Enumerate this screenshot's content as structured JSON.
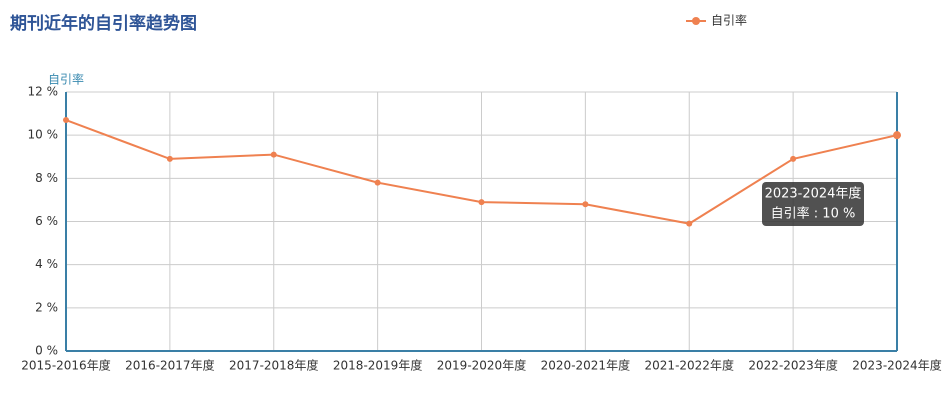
{
  "chart_data": {
    "type": "line",
    "title": "期刊近年的自引率趋势图",
    "y_label": "自引率",
    "categories": [
      "2015-2016年度",
      "2016-2017年度",
      "2017-2018年度",
      "2018-2019年度",
      "2019-2020年度",
      "2020-2021年度",
      "2021-2022年度",
      "2022-2023年度",
      "2023-2024年度"
    ],
    "series": [
      {
        "name": "自引率",
        "color": "#ef8150",
        "values": [
          10.7,
          8.9,
          9.1,
          7.8,
          6.9,
          6.8,
          5.9,
          8.9,
          10
        ]
      }
    ],
    "ylim": [
      0,
      12
    ],
    "yticks": [
      {
        "value": 0,
        "label": "0 %"
      },
      {
        "value": 2,
        "label": "2 %"
      },
      {
        "value": 4,
        "label": "4 %"
      },
      {
        "value": 6,
        "label": "6 %"
      },
      {
        "value": 8,
        "label": "8 %"
      },
      {
        "value": 10,
        "label": "10 %"
      },
      {
        "value": 12,
        "label": "12 %"
      }
    ],
    "grid": true,
    "legend": "top-right",
    "tooltip": {
      "category_index": 8,
      "text": "自引率 : 10 %"
    }
  }
}
